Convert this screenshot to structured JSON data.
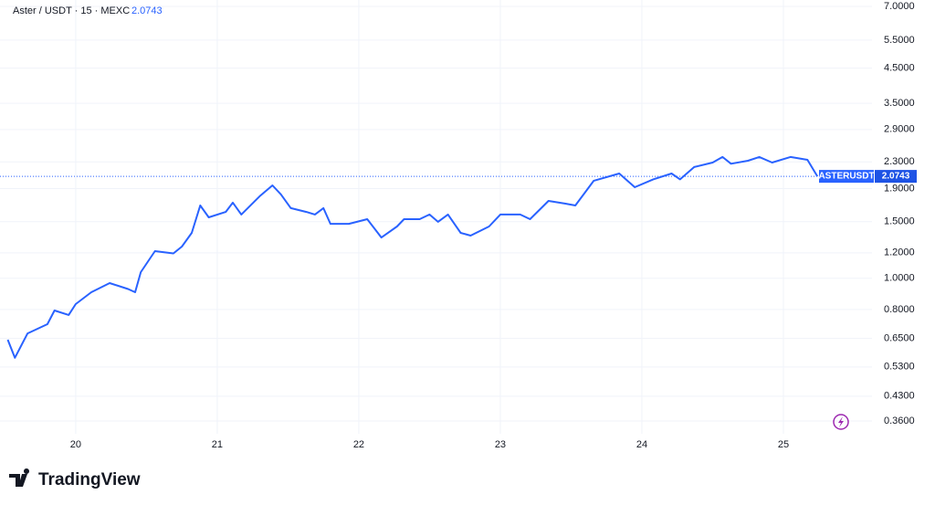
{
  "chart_data": {
    "type": "line",
    "title": "Aster / USDT · 15 · MEXC",
    "last_value": 2.0743,
    "symbol_label": "ASTERUSDT",
    "log_scale": true,
    "grid": true,
    "series": [
      {
        "name": "ASTERUSDT",
        "color": "#2962ff",
        "x": [
          19.52,
          19.57,
          19.66,
          19.8,
          19.85,
          19.95,
          20.0,
          20.11,
          20.24,
          20.37,
          20.42,
          20.46,
          20.56,
          20.69,
          20.75,
          20.82,
          20.88,
          20.94,
          21.06,
          21.11,
          21.17,
          21.3,
          21.39,
          21.45,
          21.52,
          21.63,
          21.69,
          21.75,
          21.8,
          21.93,
          22.06,
          22.16,
          22.27,
          22.32,
          22.43,
          22.5,
          22.56,
          22.63,
          22.72,
          22.79,
          22.92,
          23.0,
          23.14,
          23.21,
          23.34,
          23.46,
          23.53,
          23.66,
          23.84,
          23.95,
          24.08,
          24.21,
          24.27,
          24.37,
          24.5,
          24.57,
          24.63,
          24.75,
          24.83,
          24.92,
          25.05,
          25.17,
          25.24
        ],
        "values": [
          0.644,
          0.566,
          0.674,
          0.72,
          0.794,
          0.769,
          0.831,
          0.905,
          0.966,
          0.926,
          0.905,
          1.045,
          1.214,
          1.195,
          1.255,
          1.384,
          1.684,
          1.547,
          1.608,
          1.718,
          1.578,
          1.799,
          1.944,
          1.822,
          1.652,
          1.608,
          1.578,
          1.652,
          1.477,
          1.477,
          1.527,
          1.339,
          1.449,
          1.527,
          1.527,
          1.578,
          1.498,
          1.578,
          1.384,
          1.357,
          1.449,
          1.578,
          1.578,
          1.527,
          1.74,
          1.706,
          1.684,
          2.01,
          2.117,
          1.919,
          2.03,
          2.117,
          2.03,
          2.217,
          2.289,
          2.382,
          2.27,
          2.319,
          2.382,
          2.289,
          2.382,
          2.335,
          2.0743
        ]
      }
    ],
    "xlim": [
      19.465,
      25.626
    ],
    "xticks": [
      20,
      21,
      22,
      23,
      24,
      25
    ],
    "ylim": [
      0.3285,
      7.33
    ],
    "yticks": [
      {
        "value": 7,
        "label": "7.0000"
      },
      {
        "value": 5.5,
        "label": "5.5000"
      },
      {
        "value": 4.5,
        "label": "4.5000"
      },
      {
        "value": 3.5,
        "label": "3.5000"
      },
      {
        "value": 2.9,
        "label": "2.9000"
      },
      {
        "value": 2.3,
        "label": "2.3000"
      },
      {
        "value": 1.9,
        "label": "1.9000"
      },
      {
        "value": 1.5,
        "label": "1.5000"
      },
      {
        "value": 1.2,
        "label": "1.2000"
      },
      {
        "value": 1,
        "label": "1.0000"
      },
      {
        "value": 0.8,
        "label": "0.8000"
      },
      {
        "value": 0.65,
        "label": "0.6500"
      },
      {
        "value": 0.53,
        "label": "0.5300"
      },
      {
        "value": 0.43,
        "label": "0.4300"
      },
      {
        "value": 0.36,
        "label": "0.3600"
      }
    ]
  },
  "brand": "TradingView"
}
